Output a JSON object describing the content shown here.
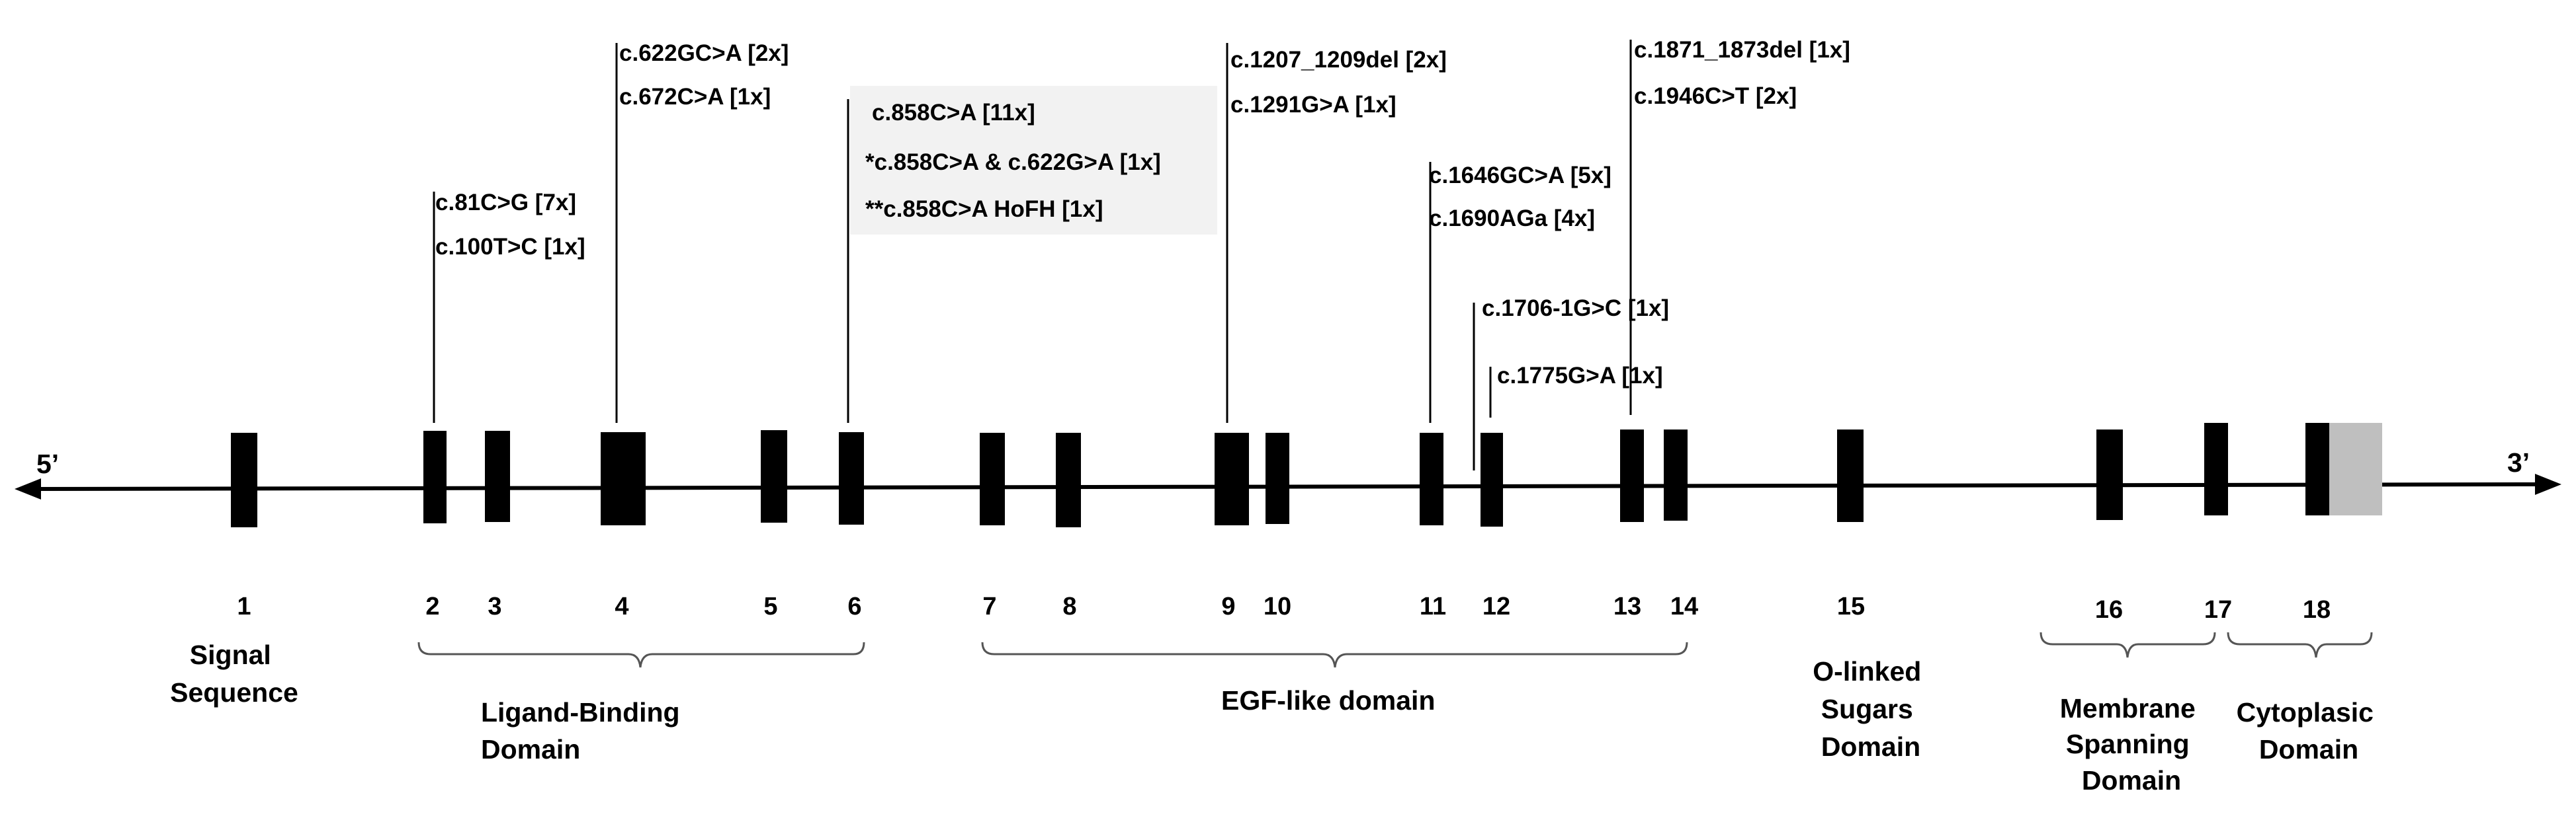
{
  "ends": {
    "five": "5’",
    "three": "3’"
  },
  "exons": [
    "1",
    "2",
    "3",
    "4",
    "5",
    "6",
    "7",
    "8",
    "9",
    "10",
    "11",
    "12",
    "13",
    "14",
    "15",
    "16",
    "17",
    "18"
  ],
  "domains": [
    {
      "key": "signal",
      "lines": [
        "Signal",
        "Sequence"
      ]
    },
    {
      "key": "ligand",
      "lines": [
        "Ligand-Binding",
        "Domain"
      ]
    },
    {
      "key": "egf",
      "lines": [
        "EGF-like domain"
      ]
    },
    {
      "key": "olinked",
      "lines": [
        "O-linked",
        "Sugars",
        "Domain"
      ]
    },
    {
      "key": "membrane",
      "lines": [
        "Membrane",
        "Spanning",
        "Domain"
      ]
    },
    {
      "key": "cytoplasic",
      "lines": [
        "Cytoplasic",
        "Domain"
      ]
    }
  ],
  "mutations": {
    "exon2": [
      "c.81C>G [7x]",
      "c.100T>C [1x]"
    ],
    "exon4": [
      "c.622GC>A [2x]",
      "c.672C>A [1x]"
    ],
    "exon6": [
      "c.858C>A [11x]",
      "*c.858C>A & c.622G>A [1x]",
      "**c.858C>A HoFH [1x]"
    ],
    "exon9": [
      "c.1207_1209del  [2x]",
      "c.1291G>A [1x]"
    ],
    "exon11": [
      "c.1646GC>A [5x]",
      "c.1690AGa [4x]"
    ],
    "intron11": [
      "c.1706-1G>C [1x]"
    ],
    "exon12": [
      "c.1775G>A [1x]"
    ],
    "exon13": [
      "c.1871_1873del  [1x]",
      "c.1946C>T [2x]"
    ]
  },
  "colors": {
    "exon": "#000000",
    "utr": "#bfbfbf",
    "highlight_box": "#f2f2f2"
  }
}
